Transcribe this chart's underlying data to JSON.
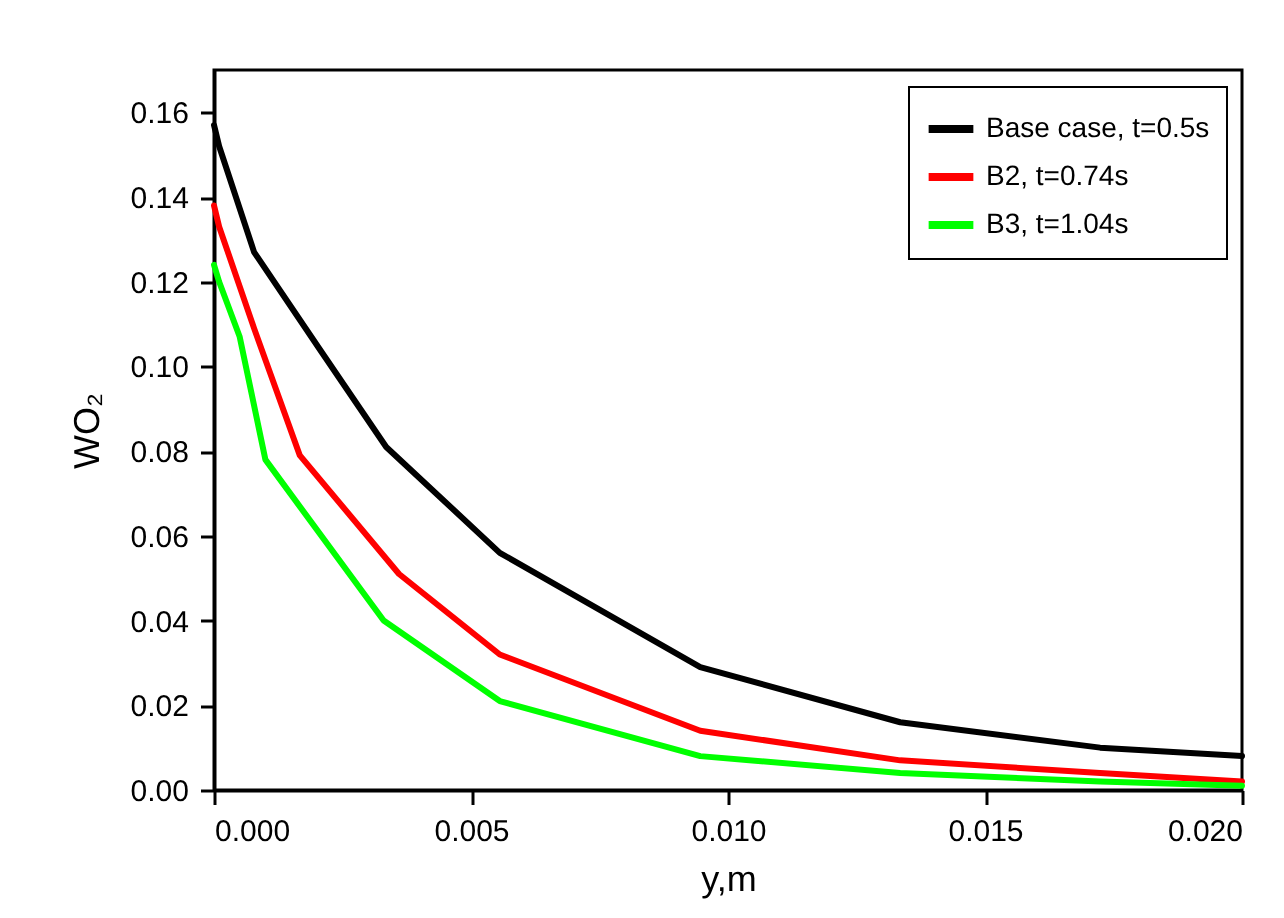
{
  "chart_data": {
    "type": "line",
    "xlabel": "y,m",
    "ylabel": "WO₂",
    "x": [
      0,
      0.0001,
      0.00078,
      0.00206,
      0.00335,
      0.00556,
      0.00946,
      0.01335,
      0.01724,
      0.02
    ],
    "series": [
      {
        "name": "Base case, t=0.5s",
        "color": "#000000",
        "values": [
          0.157,
          0.152,
          0.127,
          0.104,
          0.081,
          0.056,
          0.029,
          0.016,
          0.01,
          0.008
        ]
      },
      {
        "name": "B2, t=0.74s",
        "color": "#ff0000",
        "x": [
          0,
          0.0001,
          0.00078,
          0.00167,
          0.0036,
          0.00556,
          0.00946,
          0.01335,
          0.01724,
          0.02
        ],
        "values": [
          0.138,
          0.133,
          0.109,
          0.079,
          0.051,
          0.032,
          0.014,
          0.007,
          0.004,
          0.002
        ]
      },
      {
        "name": "B3, t=1.04s",
        "color": "#00ff00",
        "x": [
          0,
          0.0001,
          0.0005,
          0.001,
          0.0033,
          0.00556,
          0.00946,
          0.01335,
          0.01724,
          0.02
        ],
        "values": [
          0.124,
          0.12,
          0.107,
          0.078,
          0.04,
          0.021,
          0.008,
          0.004,
          0.002,
          0.001
        ]
      }
    ],
    "xlim": [
      0,
      0.02
    ],
    "xticks": [
      {
        "value": 0,
        "label": "0.000"
      },
      {
        "value": 0.005,
        "label": "0.005"
      },
      {
        "value": 0.01,
        "label": "0.010"
      },
      {
        "value": 0.015,
        "label": "0.015"
      },
      {
        "value": 0.02,
        "label": "0.020"
      }
    ],
    "ylim": [
      0,
      0.17
    ],
    "yticks": [
      {
        "value": 0,
        "label": "0.00"
      },
      {
        "value": 0.02,
        "label": "0.02"
      },
      {
        "value": 0.04,
        "label": "0.04"
      },
      {
        "value": 0.06,
        "label": "0.06"
      },
      {
        "value": 0.08,
        "label": "0.08"
      },
      {
        "value": 0.1,
        "label": "0.10"
      },
      {
        "value": 0.12,
        "label": "0.12"
      },
      {
        "value": 0.14,
        "label": "0.14"
      },
      {
        "value": 0.16,
        "label": "0.16"
      }
    ],
    "grid": false,
    "legend": "top right",
    "marker": "none",
    "line_style": "solid"
  }
}
